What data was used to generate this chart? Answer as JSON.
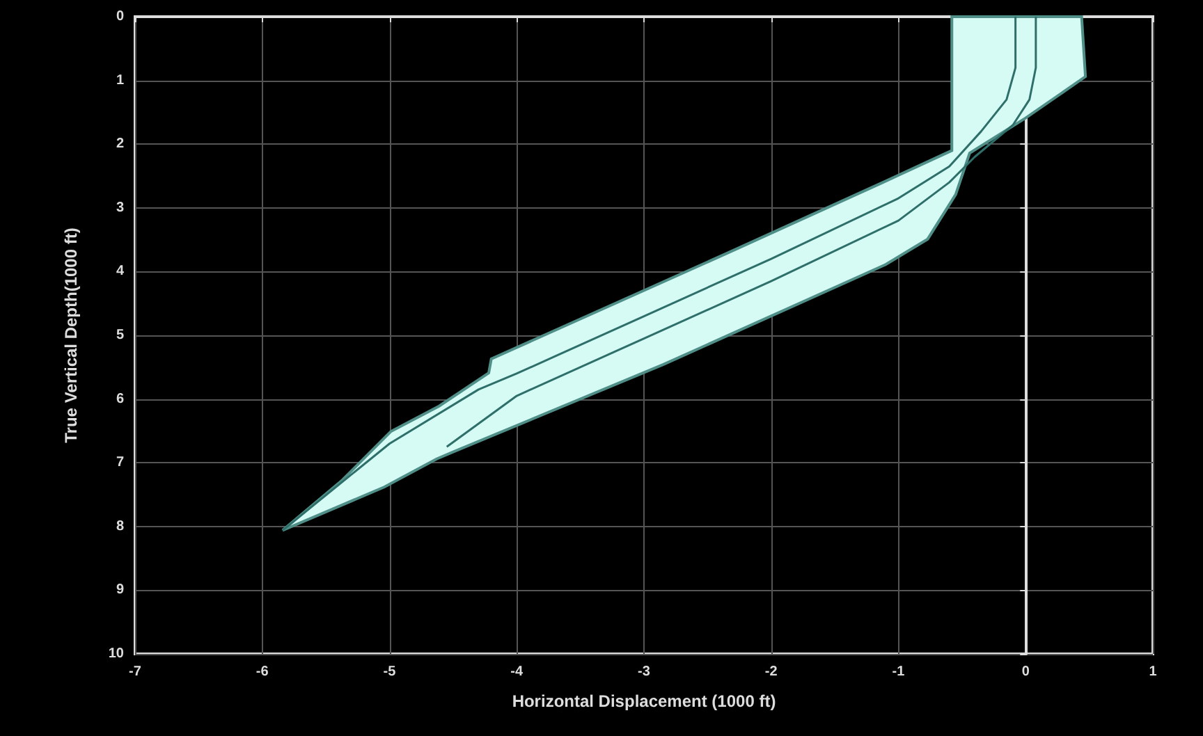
{
  "chart_data": {
    "type": "line",
    "xlabel": "Horizontal Displacement (1000 ft)",
    "ylabel": "True Vertical Depth(1000 ft)",
    "xlim": [
      -7,
      1
    ],
    "ylim": [
      10,
      0
    ],
    "xticks": [
      -7,
      -6,
      -5,
      -4,
      -3,
      -2,
      -1,
      0,
      1
    ],
    "yticks": [
      0,
      1,
      2,
      3,
      4,
      5,
      6,
      7,
      8,
      9,
      10
    ],
    "grid": true,
    "marker": "none",
    "series": [
      {
        "type": "area",
        "color": "#d6fbf5",
        "x": [
          -5.84,
          -5.37,
          -4.99,
          -4.61,
          -4.22,
          -4.2,
          -2.3,
          -1.1,
          -0.58,
          -0.58,
          0.44,
          0.47,
          0,
          -0.44,
          -0.55,
          -0.77,
          -1.1,
          -2.85,
          -4.5,
          -4.63,
          -5.04
        ],
        "values": [
          8.06,
          7.27,
          6.51,
          6.11,
          5.59,
          5.37,
          3.67,
          2.58,
          2.1,
          0,
          0,
          0.94,
          1.59,
          2.14,
          2.79,
          3.49,
          3.89,
          5.46,
          6.83,
          6.94,
          7.38
        ]
      },
      {
        "color": "#2f6f6a",
        "x": [
          0.08,
          0.08,
          0.03,
          -0.1,
          -0.4,
          -0.6,
          -1,
          -2,
          -3,
          -4,
          -4.55
        ],
        "values": [
          0,
          0.8,
          1.3,
          1.7,
          2.2,
          2.6,
          3.2,
          4.15,
          5.05,
          5.95,
          6.75
        ]
      },
      {
        "color": "#2f6f6a",
        "x": [
          -0.08,
          -0.08,
          -0.15,
          -0.35,
          -0.6,
          -1,
          -2,
          -3,
          -4,
          -4.3,
          -5,
          -5.84
        ],
        "values": [
          0,
          0.8,
          1.3,
          1.8,
          2.35,
          2.85,
          3.8,
          4.7,
          5.6,
          5.85,
          6.7,
          8.06
        ]
      }
    ]
  }
}
